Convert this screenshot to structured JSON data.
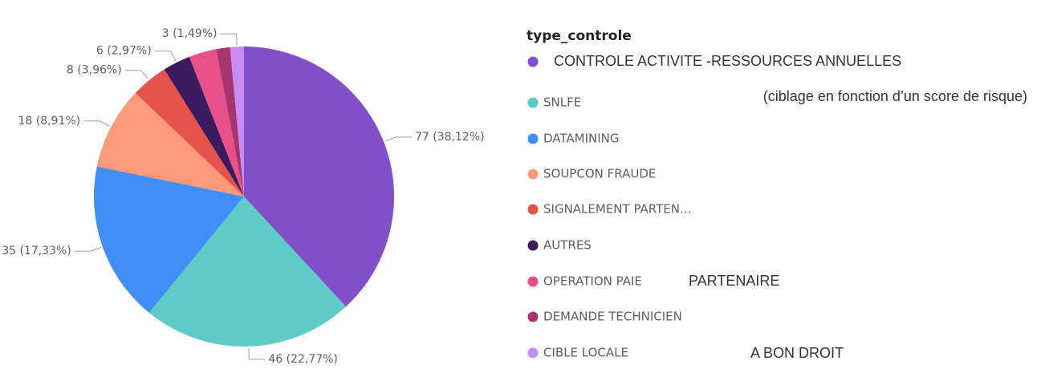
{
  "chart_data": {
    "type": "pie",
    "legend_title": "type_controle",
    "categories": [
      "CONTROLE ACTIVITE -RESSOURCES ANNUELLES",
      "SNLFE",
      "DATAMINING",
      "SOUPCON FRAUDE",
      "SIGNALEMENT PARTEN...",
      "AUTRES",
      "OPERATION PAIE",
      "DEMANDE TECHNICIEN",
      "CIBLE LOCALE"
    ],
    "values": [
      77,
      46,
      35,
      18,
      8,
      6,
      6,
      3,
      3
    ],
    "value_labels": [
      "77 (38,12%)",
      "46 (22,77%)",
      "35 (17,33%)",
      "18 (8,91%)",
      "8 (3,96%)",
      "6 (2,97%)",
      null,
      null,
      "3 (1,49%)"
    ],
    "colors": [
      "#8150c8",
      "#5fcbc6",
      "#418ef7",
      "#fd9a7b",
      "#e6524d",
      "#3c1a5e",
      "#e8508c",
      "#a6356f",
      "#c88bf5"
    ],
    "annotations": [
      "(ciblage en fonction d’un score de risque)",
      "PARTENAIRE",
      "A BON DROIT"
    ],
    "legend": "right"
  }
}
